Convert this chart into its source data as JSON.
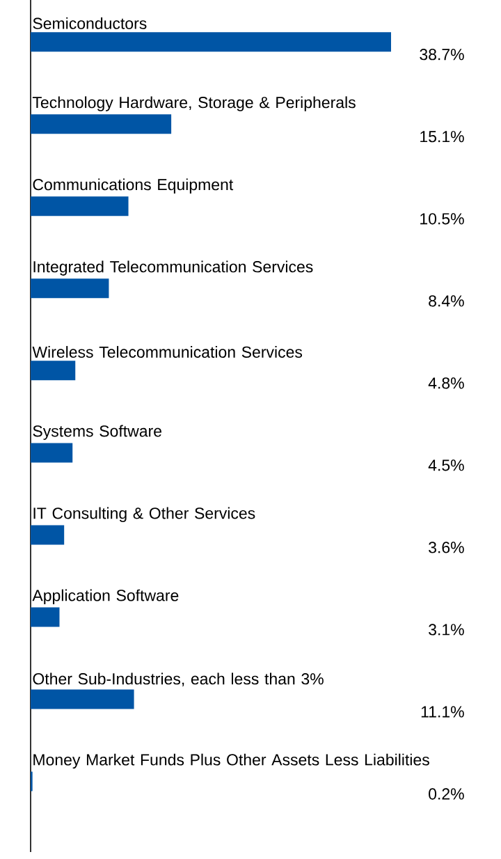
{
  "chart_data": {
    "type": "bar",
    "orientation": "horizontal",
    "categories": [
      "Semiconductors",
      "Technology Hardware, Storage & Peripherals",
      "Communications Equipment",
      "Integrated Telecommunication Services",
      "Wireless Telecommunication Services",
      "Systems Software",
      "IT Consulting & Other Services",
      "Application Software",
      "Other Sub-Industries, each less than 3%",
      "Money Market Funds Plus Other Assets Less Liabilities"
    ],
    "values": [
      38.7,
      15.1,
      10.5,
      8.4,
      4.8,
      4.5,
      3.6,
      3.1,
      11.1,
      0.2
    ],
    "value_labels": [
      "38.7%",
      "15.1%",
      "10.5%",
      "8.4%",
      "4.8%",
      "4.5%",
      "3.6%",
      "3.1%",
      "11.1%",
      "0.2%"
    ],
    "color": "#0055a5"
  }
}
